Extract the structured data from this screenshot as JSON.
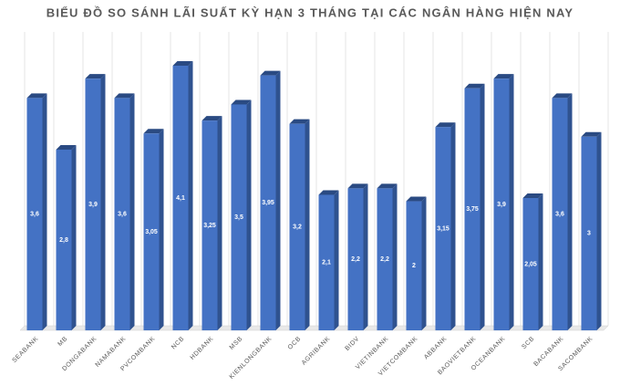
{
  "chart_data": {
    "type": "bar3d",
    "title": "BIỂU ĐỒ SO SÁNH LÃI SUẤT KỲ HẠN 3 THÁNG TẠI CÁC NGÂN HÀNG HIỆN NAY",
    "categories": [
      "SEABANK",
      "MB",
      "DONGABANK",
      "NAMABANK",
      "PVCOMBANK",
      "NCB",
      "HDBANK",
      "MSB",
      "KIENLONGBANK",
      "OCB",
      "AGRIBANK",
      "BIDV",
      "VIETINBANK",
      "VIETCOMBANK",
      "ABBANK",
      "BAOVIETBANK",
      "OCEANBANK",
      "SCB",
      "BACABANK",
      "SACOMBANK"
    ],
    "values": [
      3.6,
      2.8,
      3.9,
      3.6,
      3.05,
      4.1,
      3.25,
      3.5,
      3.95,
      3.2,
      2.1,
      2.2,
      2.2,
      2,
      3.15,
      3.75,
      3.9,
      2.05,
      3.6,
      3
    ],
    "value_labels": [
      "3,6",
      "2,8",
      "3,9",
      "3,6",
      "3,05",
      "4,1",
      "3,25",
      "3,5",
      "3,95",
      "3,2",
      "2,1",
      "2,2",
      "2,2",
      "2",
      "3,15",
      "3,75",
      "3,9",
      "2,05",
      "3,6",
      "3"
    ],
    "color": "#4472c4",
    "grid": true
  }
}
